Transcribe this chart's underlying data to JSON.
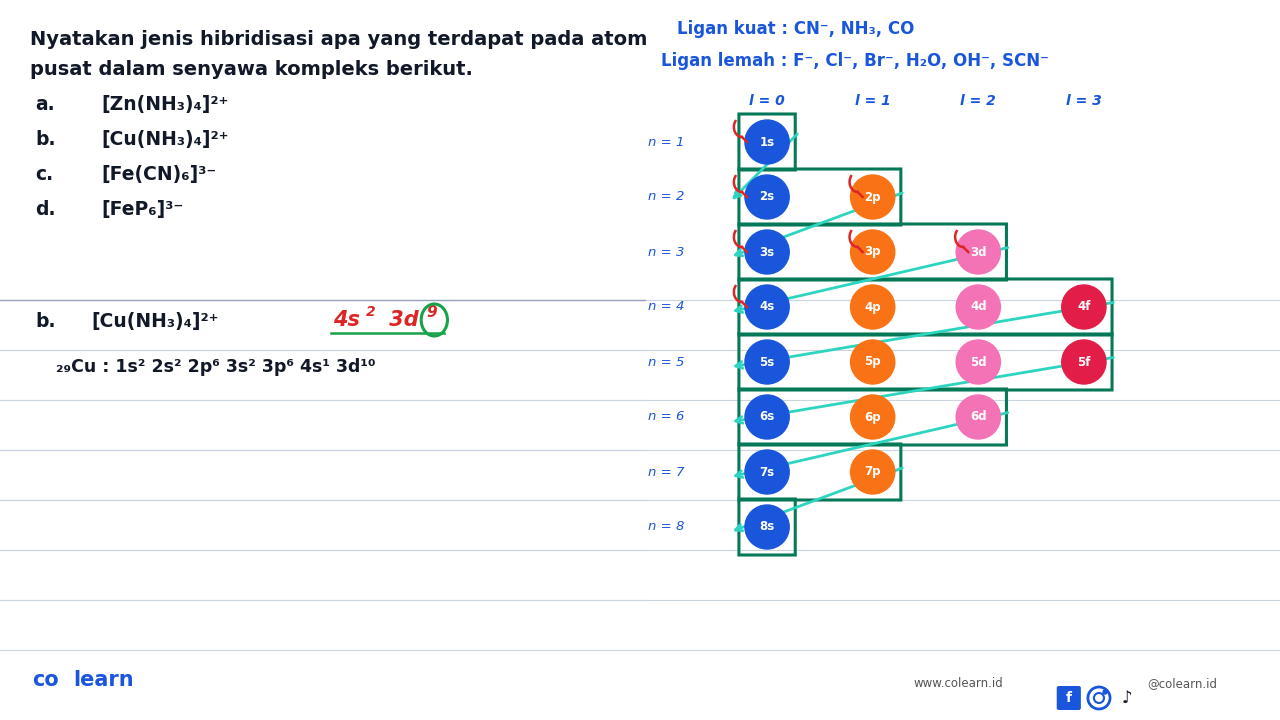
{
  "bg_color": "#ffffff",
  "title_line1": "Nyatakan jenis hibridisasi apa yang terdapat pada atom",
  "title_line2": "pusat dalam senyawa kompleks berikut.",
  "items": [
    {
      "label": "a.",
      "formula": "[Zn(NH₃)₄]²⁺"
    },
    {
      "label": "b.",
      "formula": "[Cu(NH₃)₄]²⁺"
    },
    {
      "label": "c.",
      "formula": "[Fe(CN)₆]³⁻"
    },
    {
      "label": "d.",
      "formula": "[FeP₆]³⁻"
    }
  ],
  "ligan_kuat": "Ligan kuat : CN⁻, NH₃, CO",
  "ligan_lemah": "Ligan lemah : F⁻, Cl⁻, Br⁻, H₂O, OH⁻, SCN⁻",
  "answer_b_label": "b.",
  "answer_b_formula": "[Cu(NH₃)₄]²⁺",
  "cu_config": "₂₉Cu : 1s² 2s² 2p⁶ 3s² 3p⁶ 4s¹ 3d¹⁰",
  "blue_color": "#1a56db",
  "orange_color": "#f97316",
  "pink_color": "#f9a8d4",
  "crimson_color": "#e11d48",
  "teal_color": "#2dd4bf",
  "dark_teal": "#0f766e",
  "capsule_color": "#047857",
  "red_color": "#dc2626",
  "green_color": "#16a34a",
  "line_color": "#cbd5e1",
  "text_color": "#111827",
  "footer_blue": "#1a56db",
  "n_rows": [
    {
      "n": 1,
      "orbitals": [
        {
          "label": "1s",
          "l": 0
        }
      ]
    },
    {
      "n": 2,
      "orbitals": [
        {
          "label": "2s",
          "l": 0
        },
        {
          "label": "2p",
          "l": 1
        }
      ]
    },
    {
      "n": 3,
      "orbitals": [
        {
          "label": "3s",
          "l": 0
        },
        {
          "label": "3p",
          "l": 1
        },
        {
          "label": "3d",
          "l": 2
        }
      ]
    },
    {
      "n": 4,
      "orbitals": [
        {
          "label": "4s",
          "l": 0
        },
        {
          "label": "4p",
          "l": 1
        },
        {
          "label": "4d",
          "l": 2
        },
        {
          "label": "4f",
          "l": 3
        }
      ]
    },
    {
      "n": 5,
      "orbitals": [
        {
          "label": "5s",
          "l": 0
        },
        {
          "label": "5p",
          "l": 1
        },
        {
          "label": "5d",
          "l": 2
        },
        {
          "label": "5f",
          "l": 3
        }
      ]
    },
    {
      "n": 6,
      "orbitals": [
        {
          "label": "6s",
          "l": 0
        },
        {
          "label": "6p",
          "l": 1
        },
        {
          "label": "6d",
          "l": 2
        }
      ]
    },
    {
      "n": 7,
      "orbitals": [
        {
          "label": "7s",
          "l": 0
        },
        {
          "label": "7p",
          "l": 1
        }
      ]
    },
    {
      "n": 8,
      "orbitals": [
        {
          "label": "8s",
          "l": 0
        }
      ]
    }
  ],
  "l_headers": [
    "l = 0",
    "l = 1",
    "l = 2",
    "l = 3"
  ]
}
